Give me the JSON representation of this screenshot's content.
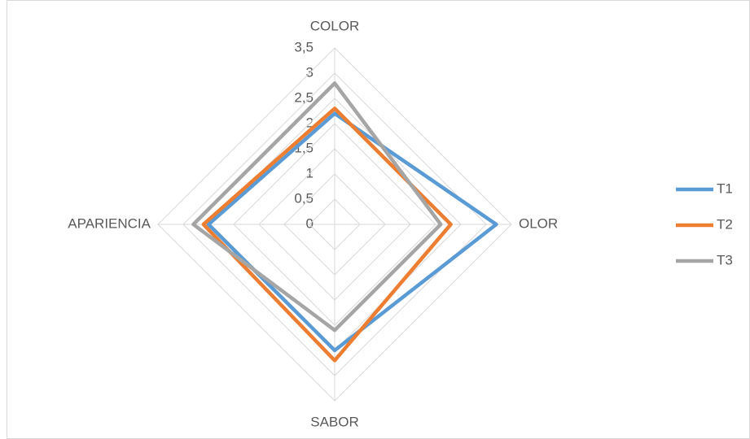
{
  "chart_data": {
    "type": "radar",
    "categories": [
      "COLOR",
      "OLOR",
      "SABOR",
      "APARIENCIA"
    ],
    "series": [
      {
        "name": "T1",
        "color": "#5b9bd5",
        "values": [
          2.2,
          3.2,
          2.5,
          2.5
        ]
      },
      {
        "name": "T2",
        "color": "#ed7d31",
        "values": [
          2.3,
          2.3,
          2.7,
          2.6
        ]
      },
      {
        "name": "T3",
        "color": "#a5a5a5",
        "values": [
          2.8,
          2.1,
          2.1,
          2.8
        ]
      }
    ],
    "ylim": [
      0,
      3.5
    ],
    "yticks": [
      0,
      {
        "value": 0.5,
        "label": "0,5"
      },
      1,
      {
        "value": 1.5,
        "label": "1,5"
      },
      2,
      {
        "value": 2.5,
        "label": "2,5"
      },
      3,
      {
        "value": 3.5,
        "label": "3,5"
      }
    ],
    "grid": true,
    "legend": "right"
  }
}
